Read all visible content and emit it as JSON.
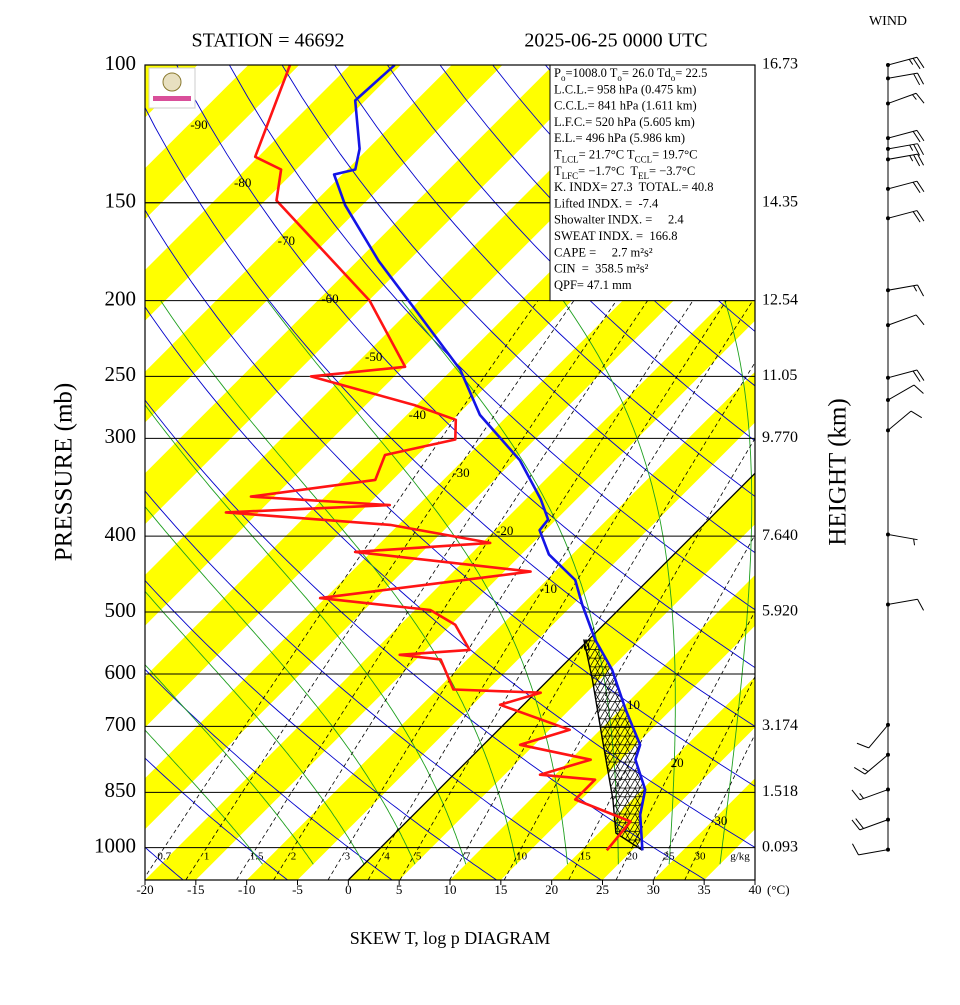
{
  "station_title": "STATION = 46692",
  "time_title": "2025-06-25 0000 UTC",
  "wind_title": "WIND",
  "info": [
    [
      "P",
      {
        "sub": "o"
      },
      "=1008.0 T",
      {
        "sub": "o"
      },
      "= 26.0 Td",
      {
        "sub": "o"
      },
      "= 22.5"
    ],
    [
      "L.C.L.= 958 hPa (0.475 km)"
    ],
    [
      "C.C.L.= 841 hPa (1.611 km)"
    ],
    [
      "L.F.C.= 520 hPa (5.605 km)"
    ],
    [
      "E.L.= 496 hPa (5.986 km)"
    ],
    [
      "T",
      {
        "sub": "LCL"
      },
      "= 21.7°C T",
      {
        "sub": "CCL"
      },
      "= 19.7°C"
    ],
    [
      "T",
      {
        "sub": "LFC"
      },
      "= −1.7°C  T",
      {
        "sub": "EL"
      },
      "= −3.7°C"
    ],
    [
      "K. INDX= 27.3  TOTAL.= 40.8"
    ],
    [
      "Lifted INDX. =  -7.4"
    ],
    [
      "Showalter INDX. =     2.4"
    ],
    [
      "SWEAT INDX. =  166.8"
    ],
    [
      "CAPE =     2.7 m²s²"
    ],
    [
      "CIN  =  358.5 m²s²"
    ],
    [
      "QPF= 47.1 mm"
    ]
  ],
  "chart_data": {
    "type": "skewt",
    "title": "SKEW T, log p DIAGRAM",
    "y_label": "PRESSURE (mb)",
    "y2_label": "HEIGHT (km)",
    "x_unit": "(°C)",
    "xlim": [
      -20,
      40
    ],
    "xticks": [
      -20,
      -15,
      -10,
      -5,
      0,
      5,
      10,
      15,
      20,
      25,
      30,
      35,
      40
    ],
    "ylim": [
      1100,
      100
    ],
    "yticks": [
      100,
      150,
      200,
      250,
      300,
      400,
      500,
      600,
      700,
      850,
      1000
    ],
    "height_ticks": [
      {
        "value": 16.73,
        "pressure": 100
      },
      {
        "value": 14.35,
        "pressure": 150
      },
      {
        "value": 12.54,
        "pressure": 200
      },
      {
        "value": 11.05,
        "pressure": 250
      },
      {
        "value": 9.77,
        "label": "9.770",
        "pressure": 300
      },
      {
        "value": 7.64,
        "label": "7.640",
        "pressure": 400
      },
      {
        "value": 5.92,
        "label": "5.920",
        "pressure": 500
      },
      {
        "value": 3.174,
        "pressure": 700
      },
      {
        "value": 1.518,
        "pressure": 850
      },
      {
        "value": 0.093,
        "pressure": 1000
      }
    ],
    "isotherm_labels": [
      -90,
      -80,
      -70,
      -60,
      -50,
      -40,
      -30,
      -20,
      -10,
      0,
      10,
      20,
      30
    ],
    "mixing_ratio_labels": [
      0.7,
      1,
      1.5,
      2,
      3,
      4,
      5,
      7,
      10,
      15,
      20,
      25,
      30
    ],
    "mixing_ratio_unit": "g/kg",
    "grid": true,
    "series": [
      {
        "color": "#1414e6",
        "pressure": [
          1008,
          908,
          843,
          772,
          739,
          666,
          593,
          542,
          489,
          455,
          422,
          393,
          381,
          359,
          320,
          280,
          245,
          209,
          178,
          151,
          138,
          136,
          128,
          111,
          100
        ],
        "values": [
          26.0,
          22.3,
          20.3,
          16.4,
          15.4,
          10.5,
          5.3,
          0.6,
          -4.1,
          -7.2,
          -12.3,
          -15.6,
          -15.8,
          -18.5,
          -24.4,
          -32.8,
          -39.2,
          -48.5,
          -57.9,
          -66.7,
          -70.8,
          -69.2,
          -70.8,
          -76.0,
          -75.6
        ]
      },
      {
        "color": "#ff1414",
        "pressure": [
          1008,
          926,
          868,
          819,
          807,
          772,
          739,
          707,
          657,
          634,
          628,
          575,
          567,
          559,
          519,
          497,
          480,
          444,
          419,
          408,
          387,
          373,
          365,
          356,
          339,
          315,
          301,
          284,
          272,
          250,
          243,
          200,
          149,
          136,
          131,
          100
        ],
        "values": [
          22.5,
          22.0,
          14.4,
          14.4,
          8.5,
          12.0,
          3.6,
          7.0,
          -2.3,
          0.5,
          -8.4,
          -12.6,
          -17.1,
          -10.7,
          -14.6,
          -18.5,
          -30.5,
          -12.4,
          -31.6,
          -19.2,
          -30.8,
          -48.2,
          -32.8,
          -47.3,
          -36.7,
          -38.2,
          -32.8,
          -34.7,
          -40.2,
          -53.2,
          -44.9,
          -54.9,
          -73.9,
          -76.5,
          -80.3,
          -85.9
        ]
      }
    ],
    "parcel": {
      "color": "#000000",
      "pressure": [
        1008,
        958,
        868,
        728,
        610,
        542
      ],
      "values": [
        26.0,
        21.7,
        18.1,
        11.2,
        4.3,
        -0.5
      ]
    },
    "wind": {
      "pressure": [
        100,
        104,
        112,
        124,
        128,
        132,
        144,
        157,
        194,
        215,
        251,
        268,
        293,
        398,
        489,
        697,
        761,
        843,
        921,
        1006
      ],
      "direction": [
        75,
        80,
        70,
        75,
        80,
        80,
        75,
        75,
        80,
        70,
        75,
        60,
        50,
        100,
        80,
        220,
        230,
        250,
        250,
        260
      ],
      "speed": [
        25,
        20,
        15,
        20,
        25,
        25,
        20,
        20,
        15,
        10,
        20,
        10,
        10,
        5,
        10,
        10,
        15,
        15,
        20,
        10
      ]
    }
  }
}
